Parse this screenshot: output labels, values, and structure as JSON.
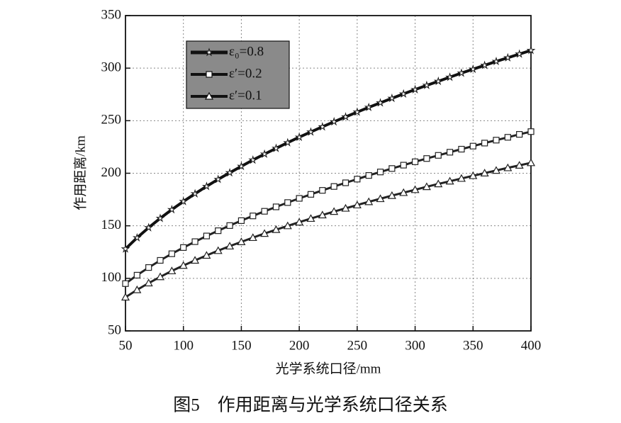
{
  "chart_data": {
    "type": "line",
    "caption": "图5　作用距离与光学系统口径关系",
    "xlabel": "光学系统口径/mm",
    "ylabel": "作用距离/km",
    "x": [
      50,
      60,
      70,
      80,
      90,
      100,
      110,
      120,
      130,
      140,
      150,
      160,
      170,
      180,
      190,
      200,
      210,
      220,
      230,
      240,
      250,
      260,
      270,
      280,
      290,
      300,
      310,
      320,
      330,
      340,
      350,
      360,
      370,
      380,
      390,
      400
    ],
    "series": [
      {
        "name": "ε₀=0.8",
        "color": "#111111",
        "marker": "star",
        "width": 4,
        "values": [
          128,
          138.6,
          148.2,
          157.1,
          165.4,
          173.2,
          180.5,
          187.5,
          194.2,
          200.5,
          206.6,
          212.6,
          218.2,
          223.7,
          229.1,
          234.3,
          239.3,
          244.2,
          249.0,
          253.6,
          258.2,
          262.7,
          267.0,
          271.3,
          275.5,
          279.6,
          283.6,
          287.5,
          291.4,
          295.3,
          299.0,
          302.7,
          306.4,
          309.9,
          313.4,
          316.9
        ]
      },
      {
        "name": "ε′=0.2",
        "color": "#222222",
        "marker": "square",
        "width": 3,
        "values": [
          95,
          103.0,
          110.3,
          117.1,
          123.4,
          129.3,
          134.9,
          140.3,
          145.3,
          150.2,
          154.9,
          159.4,
          163.8,
          168.0,
          172.1,
          176.1,
          179.9,
          183.7,
          187.4,
          190.9,
          194.4,
          197.9,
          201.2,
          204.5,
          207.7,
          210.9,
          214.0,
          217.0,
          220.0,
          222.9,
          225.8,
          228.7,
          231.5,
          234.2,
          237.0,
          239.6
        ]
      },
      {
        "name": "ε′=0.1",
        "color": "#222222",
        "marker": "triangle",
        "width": 3,
        "values": [
          82,
          89.0,
          95.5,
          101.4,
          107.0,
          112.2,
          117.1,
          121.8,
          126.3,
          130.6,
          134.7,
          138.7,
          142.6,
          146.3,
          149.9,
          153.4,
          156.9,
          160.2,
          163.5,
          166.6,
          169.7,
          172.8,
          175.7,
          178.7,
          181.5,
          184.3,
          187.1,
          189.8,
          192.4,
          195.0,
          197.6,
          200.1,
          202.6,
          205.1,
          207.5,
          209.9
        ]
      }
    ],
    "xlim": [
      50,
      400
    ],
    "xticks": [
      50,
      100,
      150,
      200,
      250,
      300,
      350,
      400
    ],
    "ylim": [
      50,
      350
    ],
    "yticks": [
      50,
      100,
      150,
      200,
      250,
      300,
      350
    ],
    "grid": true,
    "legend": "upper left"
  }
}
